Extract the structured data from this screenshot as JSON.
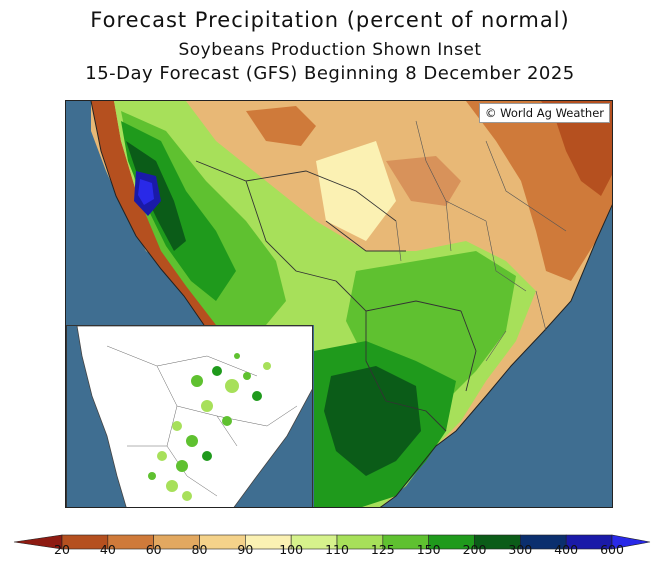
{
  "header": {
    "title": "Forecast Precipitation (percent of normal)",
    "subtitle": "Soybeans Production Shown Inset",
    "forecast_line": "15-Day Forecast (GFS) Beginning 8 December 2025"
  },
  "map": {
    "credit": "© World Ag Weather",
    "region": "South America (Brazil, Bolivia, Paraguay, Argentina, Uruguay)"
  },
  "inset": {
    "label": "Soybeans production"
  },
  "legend": {
    "ticks": [
      "20",
      "40",
      "60",
      "80",
      "90",
      "100",
      "110",
      "125",
      "150",
      "200",
      "300",
      "400",
      "600"
    ],
    "colors": [
      "#8e1b12",
      "#b5501f",
      "#cf7a3a",
      "#e2a860",
      "#f4d28a",
      "#fbf1b3",
      "#d6f28c",
      "#a7e05a",
      "#5fc130",
      "#1f9a1c",
      "#0b5c18",
      "#0b2f6e",
      "#1a1aa8",
      "#2929e8"
    ]
  }
}
